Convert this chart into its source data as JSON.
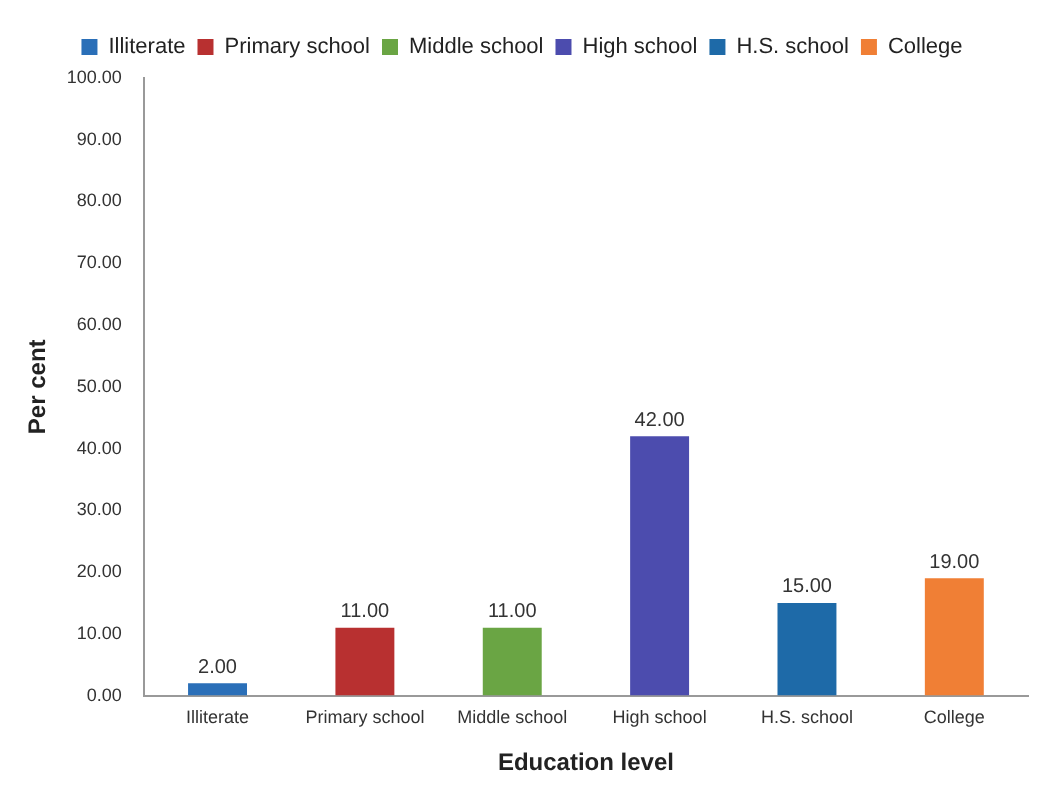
{
  "chart_data": {
    "type": "bar",
    "xlabel": "Education level",
    "ylabel": "Per cent",
    "categories": [
      "Illiterate",
      "Primary school",
      "Middle school",
      "High school",
      "H.S. school",
      "College"
    ],
    "series": [
      {
        "name": "Illiterate",
        "color": "#2a6fb8",
        "values": [
          2,
          null,
          null,
          null,
          null,
          null
        ],
        "value_labels": [
          "2.00",
          null,
          null,
          null,
          null,
          null
        ]
      },
      {
        "name": "Primary school",
        "color": "#b83030",
        "values": [
          null,
          11,
          null,
          null,
          null,
          null
        ],
        "value_labels": [
          null,
          "11.00",
          null,
          null,
          null,
          null
        ]
      },
      {
        "name": "Middle school",
        "color": "#6aa544",
        "values": [
          null,
          null,
          11,
          null,
          null,
          null
        ],
        "value_labels": [
          null,
          null,
          "11.00",
          null,
          null,
          null
        ]
      },
      {
        "name": "High school",
        "color": "#4c4cae",
        "values": [
          null,
          null,
          null,
          42,
          null,
          null
        ],
        "value_labels": [
          null,
          null,
          null,
          "42.00",
          null,
          null
        ]
      },
      {
        "name": "H.S. school",
        "color": "#1e6aa8",
        "values": [
          null,
          null,
          null,
          null,
          15,
          null
        ],
        "value_labels": [
          null,
          null,
          null,
          null,
          "15.00",
          null
        ]
      },
      {
        "name": "College",
        "color": "#f07f35",
        "values": [
          null,
          null,
          null,
          null,
          null,
          19
        ],
        "value_labels": [
          null,
          null,
          null,
          null,
          null,
          "19.00"
        ]
      }
    ],
    "ylim": [
      0,
      100
    ],
    "yticks": [
      {
        "value": 0,
        "label": "0.00"
      },
      {
        "value": 10,
        "label": "10.00"
      },
      {
        "value": 20,
        "label": "20.00"
      },
      {
        "value": 30,
        "label": "30.00"
      },
      {
        "value": 40,
        "label": "40.00"
      },
      {
        "value": 50,
        "label": "50.00"
      },
      {
        "value": 60,
        "label": "60.00"
      },
      {
        "value": 70,
        "label": "70.00"
      },
      {
        "value": 80,
        "label": "80.00"
      },
      {
        "value": 90,
        "label": "90.00"
      },
      {
        "value": 100,
        "label": "100.00"
      }
    ],
    "legend": "top",
    "grid": false
  }
}
